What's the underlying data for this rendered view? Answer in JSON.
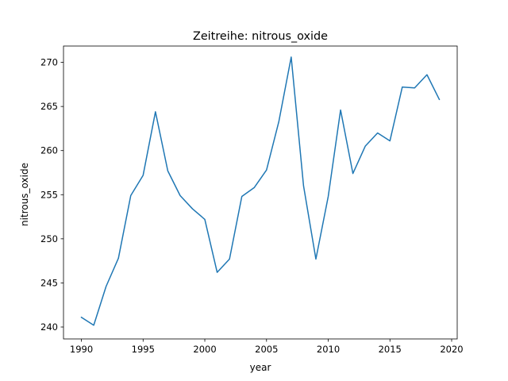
{
  "chart_data": {
    "type": "line",
    "title": "Zeitreihe: nitrous_oxide",
    "xlabel": "year",
    "ylabel": "nitrous_oxide",
    "xlim": [
      1988.55,
      2020.45
    ],
    "ylim": [
      238.65,
      271.85
    ],
    "xticks": [
      1990,
      1995,
      2000,
      2005,
      2010,
      2015,
      2020
    ],
    "yticks": [
      240,
      245,
      250,
      255,
      260,
      265,
      270
    ],
    "grid": false,
    "series": [
      {
        "color": "#1f77b4",
        "x": [
          1990,
          1991,
          1992,
          1993,
          1994,
          1995,
          1996,
          1997,
          1998,
          1999,
          2000,
          2001,
          2002,
          2003,
          2004,
          2005,
          2006,
          2007,
          2008,
          2009,
          2010,
          2011,
          2012,
          2013,
          2014,
          2015,
          2016,
          2017,
          2018,
          2019
        ],
        "y": [
          241.1,
          240.2,
          244.6,
          247.8,
          254.9,
          257.2,
          264.4,
          257.7,
          254.9,
          253.4,
          252.2,
          246.2,
          247.7,
          254.8,
          255.8,
          257.8,
          263.3,
          270.6,
          256.0,
          247.7,
          254.8,
          264.6,
          257.4,
          260.5,
          262.0,
          261.1,
          267.2,
          267.1,
          268.6,
          265.8
        ]
      }
    ]
  }
}
